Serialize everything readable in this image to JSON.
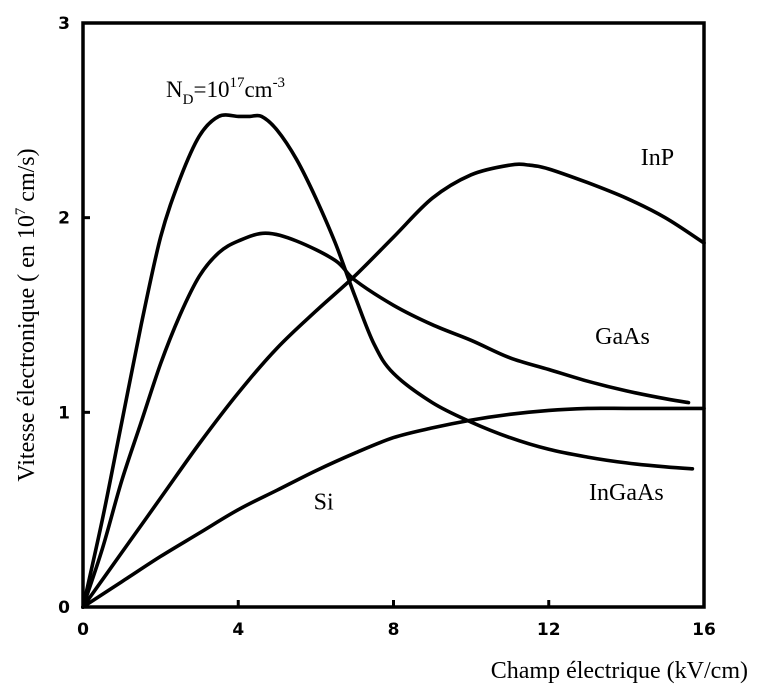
{
  "chart_data": {
    "type": "line",
    "xlabel": "Champ électrique (kV/cm)",
    "ylabel_prefix": "Vitesse électronique ( en 10",
    "ylabel_exp": "7",
    "ylabel_suffix": " cm/s)",
    "xlim": [
      0,
      16
    ],
    "ylim": [
      0,
      3
    ],
    "x_ticks": [
      "0",
      "4",
      "8",
      "12",
      "16"
    ],
    "y_ticks": [
      "0",
      "1",
      "2",
      "3"
    ],
    "grid": false,
    "annotation": {
      "base": "N",
      "sub": "D",
      "mid": "=10",
      "sup": "17",
      "unit": "cm",
      "unit_sup": "-3"
    },
    "series": [
      {
        "name": "InGaAs",
        "x": [
          0,
          0.5,
          1,
          1.5,
          2,
          2.5,
          3,
          3.5,
          4,
          4.3,
          4.6,
          5,
          5.5,
          6,
          6.5,
          7,
          7.5,
          8,
          9,
          10,
          11,
          12,
          13,
          14,
          15,
          15.7
        ],
        "y": [
          0,
          0.45,
          0.95,
          1.45,
          1.9,
          2.2,
          2.42,
          2.52,
          2.52,
          2.52,
          2.52,
          2.45,
          2.3,
          2.1,
          1.87,
          1.6,
          1.35,
          1.2,
          1.05,
          0.95,
          0.87,
          0.81,
          0.77,
          0.74,
          0.72,
          0.71
        ]
      },
      {
        "name": "GaAs",
        "x": [
          0,
          0.5,
          1,
          1.5,
          2,
          2.5,
          3,
          3.5,
          4,
          4.7,
          5.5,
          6.5,
          7,
          8,
          9,
          10,
          11,
          12,
          13,
          14,
          15,
          15.6
        ],
        "y": [
          0,
          0.3,
          0.65,
          0.95,
          1.25,
          1.5,
          1.7,
          1.82,
          1.88,
          1.92,
          1.88,
          1.78,
          1.68,
          1.55,
          1.45,
          1.37,
          1.28,
          1.22,
          1.16,
          1.11,
          1.07,
          1.05
        ]
      },
      {
        "name": "InP",
        "x": [
          0,
          1,
          2,
          3,
          4,
          5,
          6,
          7,
          8,
          9,
          10,
          11,
          11.5,
          12,
          13,
          14,
          15,
          16
        ],
        "y": [
          0,
          0.28,
          0.56,
          0.84,
          1.1,
          1.33,
          1.52,
          1.7,
          1.9,
          2.1,
          2.22,
          2.27,
          2.27,
          2.25,
          2.18,
          2.1,
          2.0,
          1.87
        ]
      },
      {
        "name": "Si",
        "x": [
          0,
          1,
          2,
          3,
          4,
          5,
          6,
          7,
          8,
          9,
          10,
          11,
          12,
          13,
          14,
          15,
          16
        ],
        "y": [
          0,
          0.13,
          0.26,
          0.38,
          0.5,
          0.6,
          0.7,
          0.79,
          0.87,
          0.92,
          0.96,
          0.99,
          1.01,
          1.02,
          1.02,
          1.02,
          1.02
        ]
      }
    ],
    "labels": [
      {
        "series": "InP",
        "text": "InP",
        "x": 14.8,
        "y": 2.27
      },
      {
        "series": "GaAs",
        "text": "GaAs",
        "x": 13.9,
        "y": 1.35
      },
      {
        "series": "InGaAs",
        "text": "InGaAs",
        "x": 14.0,
        "y": 0.55
      },
      {
        "series": "Si",
        "text": "Si",
        "x": 6.2,
        "y": 0.5
      }
    ]
  }
}
